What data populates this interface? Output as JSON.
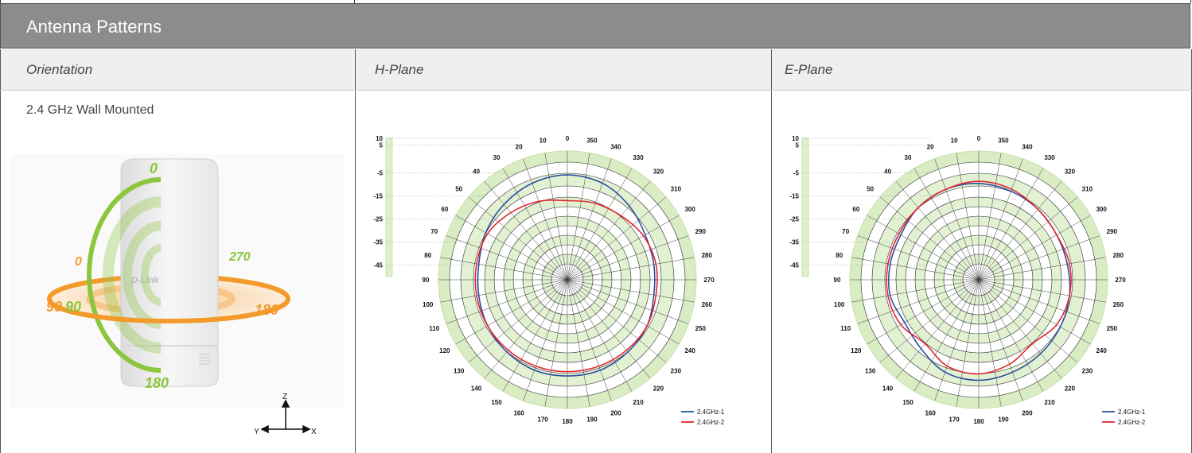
{
  "header": {
    "title": "Antenna Patterns"
  },
  "columns": {
    "orientation": "Orientation",
    "h_plane": "H-Plane",
    "e_plane": "E-Plane"
  },
  "orientation": {
    "title": "2.4 GHz Wall Mounted",
    "green_ring_labels": {
      "top": "0",
      "bottom": "180",
      "left": "90"
    },
    "orange_ring_labels": {
      "left": "90",
      "top": "0",
      "right_top": "270",
      "right": "180"
    },
    "brand": "D-Link",
    "axes": {
      "z": "Z",
      "y": "Y",
      "x": "X"
    }
  },
  "colors": {
    "green": "#8cc63e",
    "orange": "#f39a2b",
    "series1": "#2b4ea0",
    "series2": "#e2262b"
  },
  "chart_data": [
    {
      "type": "polar",
      "name": "H-Plane",
      "scale_labels": [
        "10",
        "5",
        "-5",
        "-15",
        "-25",
        "-35",
        "-45"
      ],
      "angle_labels": [
        "0",
        "10",
        "20",
        "30",
        "40",
        "50",
        "60",
        "70",
        "80",
        "90",
        "100",
        "110",
        "120",
        "130",
        "140",
        "150",
        "160",
        "170",
        "180",
        "190",
        "200",
        "210",
        "220",
        "230",
        "240",
        "250",
        "260",
        "270",
        "280",
        "290",
        "300",
        "310",
        "320",
        "330",
        "340",
        "350"
      ],
      "rlim": [
        -45,
        10
      ],
      "legend": "bottom-right",
      "series": [
        {
          "name": "2.4GHz-1",
          "color": "#2b4ea0",
          "angles": [
            0,
            20,
            40,
            60,
            80,
            100,
            120,
            140,
            160,
            180,
            200,
            220,
            240,
            260,
            280,
            300,
            320,
            340
          ],
          "values": [
            4,
            3,
            1,
            -1,
            -3,
            -3,
            -2,
            -1,
            0,
            0,
            0,
            -1,
            -2,
            -4,
            -4,
            -3,
            0,
            3
          ]
        },
        {
          "name": "2.4GHz-2",
          "color": "#e2262b",
          "angles": [
            0,
            20,
            40,
            60,
            80,
            100,
            120,
            140,
            160,
            180,
            200,
            220,
            240,
            260,
            280,
            300,
            320,
            340
          ],
          "values": [
            -8,
            -6,
            -4,
            -2,
            -2,
            -2,
            -2,
            -2,
            -2,
            -2,
            -2,
            -2,
            -2,
            -3,
            -3,
            -4,
            -6,
            -7
          ]
        }
      ]
    },
    {
      "type": "polar",
      "name": "E-Plane",
      "scale_labels": [
        "10",
        "5",
        "-5",
        "-15",
        "-25",
        "-35",
        "-45"
      ],
      "angle_labels": [
        "0",
        "10",
        "20",
        "30",
        "40",
        "50",
        "60",
        "70",
        "80",
        "90",
        "100",
        "110",
        "120",
        "130",
        "140",
        "150",
        "160",
        "170",
        "180",
        "190",
        "200",
        "210",
        "220",
        "230",
        "240",
        "250",
        "260",
        "270",
        "280",
        "290",
        "300",
        "310",
        "320",
        "330",
        "340",
        "350"
      ],
      "rlim": [
        -45,
        10
      ],
      "legend": "bottom-right",
      "series": [
        {
          "name": "2.4GHz-1",
          "color": "#2b4ea0",
          "angles": [
            0,
            20,
            40,
            60,
            80,
            100,
            120,
            140,
            160,
            180,
            200,
            220,
            240,
            260,
            280,
            300,
            320,
            340
          ],
          "values": [
            0,
            0,
            -1,
            -3,
            -3,
            -3,
            -5,
            -3,
            1,
            2,
            1,
            0,
            -1,
            -2,
            -3,
            -3,
            -2,
            -1
          ]
        },
        {
          "name": "2.4GHz-2",
          "color": "#e2262b",
          "angles": [
            0,
            20,
            40,
            60,
            80,
            100,
            120,
            140,
            160,
            180,
            200,
            220,
            240,
            260,
            280,
            300,
            320,
            340
          ],
          "values": [
            1,
            0,
            -1,
            -2,
            -2,
            -2,
            -3,
            -6,
            -2,
            -1,
            -3,
            -6,
            -3,
            -2,
            -2,
            -3,
            -2,
            0
          ]
        }
      ]
    }
  ]
}
